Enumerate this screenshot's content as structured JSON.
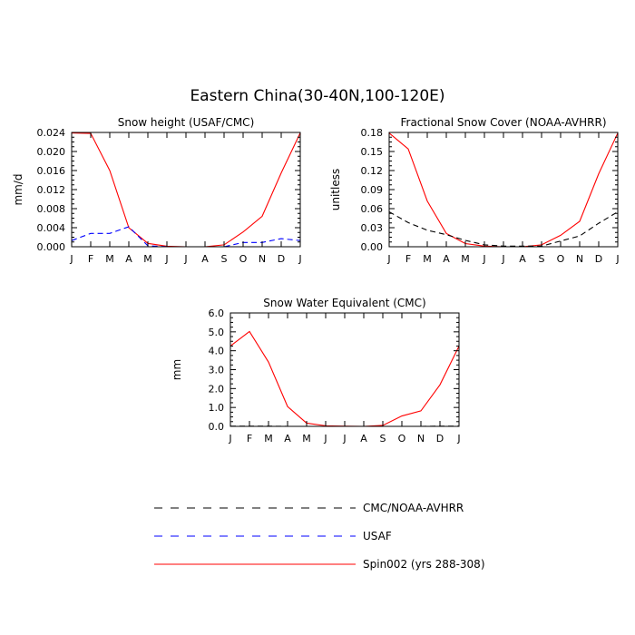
{
  "figure": {
    "title": "Eastern China(30-40N,100-120E)"
  },
  "legend": {
    "placement": "bottom-center",
    "entries": [
      {
        "name": "CMC/NOAA-AVHRR",
        "color": "#000000",
        "dash": "dashed"
      },
      {
        "name": "USAF",
        "color": "#0000ff",
        "dash": "dashed"
      },
      {
        "name": "Spin002 (yrs 288-308)",
        "color": "#ff0000",
        "dash": "solid"
      }
    ]
  },
  "chart_data": [
    {
      "type": "line",
      "title": "Snow height (USAF/CMC)",
      "xlabel": "",
      "ylabel": "mm/d",
      "x": [
        "J",
        "F",
        "M",
        "A",
        "M",
        "J",
        "J",
        "A",
        "S",
        "O",
        "N",
        "D",
        "J"
      ],
      "ylim": [
        0,
        0.024
      ],
      "yticks": [
        "0.000",
        "0.004",
        "0.008",
        "0.012",
        "0.016",
        "0.020",
        "0.024"
      ],
      "series": [
        {
          "name": "Spin002 (yrs 288-308)",
          "color": "#ff0000",
          "dash": "solid",
          "values": [
            0.0239,
            0.0238,
            0.016,
            0.004,
            0.0007,
            0.0001,
            0.0,
            0.0,
            0.0004,
            0.0031,
            0.0064,
            0.0155,
            0.0239
          ]
        },
        {
          "name": "USAF",
          "color": "#0000ff",
          "dash": "dashed",
          "values": [
            0.0013,
            0.0028,
            0.0028,
            0.0042,
            0.0002,
            0.0,
            0.0,
            0.0,
            0.0,
            0.0009,
            0.0009,
            0.0017,
            0.0013
          ]
        }
      ]
    },
    {
      "type": "line",
      "title": "Fractional Snow Cover (NOAA-AVHRR)",
      "xlabel": "",
      "ylabel": "unitless",
      "x": [
        "J",
        "F",
        "M",
        "A",
        "M",
        "J",
        "J",
        "A",
        "S",
        "O",
        "N",
        "D",
        "J"
      ],
      "ylim": [
        0,
        0.18
      ],
      "yticks": [
        "0.00",
        "0.03",
        "0.06",
        "0.09",
        "0.12",
        "0.15",
        "0.18"
      ],
      "series": [
        {
          "name": "Spin002 (yrs 288-308)",
          "color": "#ff0000",
          "dash": "solid",
          "values": [
            0.179,
            0.154,
            0.072,
            0.021,
            0.005,
            0.001,
            0.0,
            0.0,
            0.003,
            0.018,
            0.04,
            0.115,
            0.179
          ]
        },
        {
          "name": "CMC/NOAA-AVHRR",
          "color": "#000000",
          "dash": "dashed",
          "values": [
            0.055,
            0.038,
            0.026,
            0.019,
            0.01,
            0.003,
            0.001,
            0.001,
            0.001,
            0.009,
            0.017,
            0.037,
            0.055
          ]
        }
      ]
    },
    {
      "type": "line",
      "title": "Snow Water Equivalent (CMC)",
      "xlabel": "",
      "ylabel": "mm",
      "x": [
        "J",
        "F",
        "M",
        "A",
        "M",
        "J",
        "J",
        "A",
        "S",
        "O",
        "N",
        "D",
        "J"
      ],
      "ylim": [
        0,
        6
      ],
      "yticks": [
        "0.0",
        "1.0",
        "2.0",
        "3.0",
        "4.0",
        "5.0",
        "6.0"
      ],
      "series": [
        {
          "name": "Spin002 (yrs 288-308)",
          "color": "#ff0000",
          "dash": "solid",
          "values": [
            4.25,
            5.02,
            3.4,
            1.05,
            0.17,
            0.03,
            0.01,
            0.0,
            0.05,
            0.55,
            0.82,
            2.2,
            4.25
          ]
        },
        {
          "name": "CMC/NOAA-AVHRR",
          "color": "#000000",
          "dash": "dashed",
          "values": [
            0.01,
            0.01,
            0.01,
            0.0,
            0.0,
            0.0,
            0.0,
            0.0,
            0.0,
            0.0,
            0.0,
            0.01,
            0.01
          ]
        }
      ]
    }
  ]
}
